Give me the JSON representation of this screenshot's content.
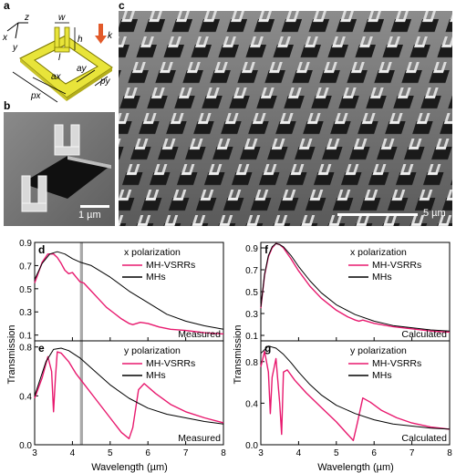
{
  "figure": {
    "panel_letters": [
      "a",
      "b",
      "c",
      "d",
      "e",
      "f",
      "g"
    ],
    "schematic_labels": {
      "z": "z",
      "x": "x",
      "y": "y",
      "w": "w",
      "l": "l",
      "h": "h",
      "k": "k",
      "ax": "ax",
      "ay": "ay",
      "px": "px",
      "py": "py"
    },
    "scalebar_b": "1 µm",
    "scalebar_c": "5 µm",
    "y_axis_label": "Transmission",
    "x_axis_label": "Wavelength (µm)",
    "colors": {
      "mh_vsrr": "#e8196e",
      "mh": "#000000",
      "gold": "#e8e43a",
      "marker_band": "#a9a9a9"
    }
  },
  "chart_data": [
    {
      "panel": "d",
      "type": "line",
      "annotation_pol": "x polarization",
      "corner_note": "Measured",
      "xlim": [
        3,
        8
      ],
      "ylim": [
        0.05,
        0.9
      ],
      "xticks": [
        3,
        4,
        5,
        6,
        7,
        8
      ],
      "yticks": [
        0.1,
        0.3,
        0.5,
        0.7,
        0.9
      ],
      "ytick_labels": [
        "0.1",
        "0.3",
        "0.5",
        "0.7",
        "0.9"
      ],
      "shaded_band": [
        4.2,
        4.28
      ],
      "series": [
        {
          "name": "MH-VSRRs",
          "color": "#e8196e",
          "x": [
            3.0,
            3.2,
            3.35,
            3.5,
            3.6,
            3.7,
            3.8,
            3.9,
            4.0,
            4.1,
            4.2,
            4.3,
            4.5,
            4.7,
            4.9,
            5.1,
            5.3,
            5.5,
            5.6,
            5.8,
            6.0,
            6.3,
            6.6,
            7.0,
            7.5,
            8.0
          ],
          "y": [
            0.55,
            0.73,
            0.8,
            0.8,
            0.77,
            0.72,
            0.66,
            0.63,
            0.64,
            0.6,
            0.56,
            0.55,
            0.48,
            0.41,
            0.34,
            0.29,
            0.24,
            0.2,
            0.19,
            0.21,
            0.2,
            0.17,
            0.15,
            0.14,
            0.12,
            0.11
          ]
        },
        {
          "name": "MHs",
          "color": "#000000",
          "x": [
            3.0,
            3.2,
            3.4,
            3.6,
            3.8,
            4.0,
            4.2,
            4.5,
            5.0,
            5.5,
            6.0,
            6.5,
            7.0,
            7.5,
            8.0
          ],
          "y": [
            0.58,
            0.72,
            0.8,
            0.82,
            0.8,
            0.76,
            0.73,
            0.7,
            0.6,
            0.48,
            0.38,
            0.28,
            0.22,
            0.18,
            0.15
          ]
        }
      ]
    },
    {
      "panel": "e",
      "type": "line",
      "annotation_pol": "y polarization",
      "corner_note": "Measured",
      "xlim": [
        3,
        8
      ],
      "ylim": [
        0,
        0.85
      ],
      "xticks": [
        3,
        4,
        5,
        6,
        7,
        8
      ],
      "yticks": [
        0,
        0.4,
        0.8
      ],
      "ytick_labels": [
        "0.0",
        "0.4",
        "0.8"
      ],
      "shaded_band": [
        4.2,
        4.28
      ],
      "series": [
        {
          "name": "MH-VSRRs",
          "color": "#e8196e",
          "x": [
            3.0,
            3.2,
            3.35,
            3.45,
            3.5,
            3.55,
            3.6,
            3.7,
            3.9,
            4.1,
            4.3,
            4.6,
            5.0,
            5.3,
            5.5,
            5.6,
            5.75,
            5.9,
            6.2,
            6.6,
            7.0,
            7.5,
            8.0
          ],
          "y": [
            0.38,
            0.55,
            0.72,
            0.6,
            0.27,
            0.55,
            0.76,
            0.75,
            0.68,
            0.58,
            0.5,
            0.38,
            0.22,
            0.1,
            0.05,
            0.14,
            0.45,
            0.5,
            0.42,
            0.33,
            0.27,
            0.22,
            0.18
          ]
        },
        {
          "name": "MHs",
          "color": "#000000",
          "x": [
            3.0,
            3.3,
            3.5,
            3.7,
            3.9,
            4.2,
            4.6,
            5.0,
            5.5,
            6.0,
            6.5,
            7.0,
            7.5,
            8.0
          ],
          "y": [
            0.4,
            0.68,
            0.78,
            0.79,
            0.77,
            0.71,
            0.6,
            0.49,
            0.38,
            0.3,
            0.25,
            0.22,
            0.19,
            0.17
          ]
        }
      ]
    },
    {
      "panel": "f",
      "type": "line",
      "annotation_pol": "x polarization",
      "corner_note": "Calculated",
      "xlim": [
        3,
        8
      ],
      "ylim": [
        0.05,
        0.95
      ],
      "xticks": [
        3,
        4,
        5,
        6,
        7,
        8
      ],
      "yticks": [
        0.1,
        0.3,
        0.5,
        0.7,
        0.9
      ],
      "ytick_labels": [
        "0.1",
        "0.3",
        "0.5",
        "0.7",
        "0.9"
      ],
      "series": [
        {
          "name": "MH-VSRRs",
          "color": "#e8196e",
          "x": [
            3.0,
            3.1,
            3.2,
            3.3,
            3.4,
            3.5,
            3.6,
            3.8,
            4.0,
            4.3,
            4.6,
            5.0,
            5.3,
            5.5,
            5.6,
            5.7,
            6.0,
            6.5,
            7.0,
            7.5,
            8.0
          ],
          "y": [
            0.35,
            0.65,
            0.82,
            0.9,
            0.94,
            0.93,
            0.9,
            0.8,
            0.69,
            0.55,
            0.44,
            0.33,
            0.27,
            0.24,
            0.23,
            0.24,
            0.21,
            0.18,
            0.16,
            0.14,
            0.13
          ]
        },
        {
          "name": "MHs",
          "color": "#000000",
          "x": [
            3.0,
            3.1,
            3.2,
            3.3,
            3.4,
            3.5,
            3.6,
            3.8,
            4.0,
            4.3,
            4.6,
            5.0,
            5.5,
            6.0,
            6.5,
            7.0,
            7.5,
            8.0
          ],
          "y": [
            0.36,
            0.66,
            0.83,
            0.91,
            0.94,
            0.93,
            0.91,
            0.83,
            0.73,
            0.6,
            0.49,
            0.38,
            0.29,
            0.23,
            0.19,
            0.17,
            0.15,
            0.14
          ]
        }
      ]
    },
    {
      "panel": "g",
      "type": "line",
      "annotation_pol": "y polarization",
      "corner_note": "Calculated",
      "xlim": [
        3,
        8
      ],
      "ylim": [
        0,
        1.0
      ],
      "xticks": [
        3,
        4,
        5,
        6,
        7,
        8
      ],
      "yticks": [
        0,
        0.4,
        0.8
      ],
      "ytick_labels": [
        "0.0",
        "0.4",
        "0.8"
      ],
      "series": [
        {
          "name": "MH-VSRRs",
          "color": "#e8196e",
          "x": [
            3.0,
            3.1,
            3.2,
            3.25,
            3.3,
            3.4,
            3.5,
            3.55,
            3.6,
            3.7,
            3.9,
            4.2,
            4.6,
            5.0,
            5.3,
            5.45,
            5.55,
            5.7,
            5.9,
            6.2,
            6.6,
            7.0,
            7.5,
            8.0
          ],
          "y": [
            0.75,
            0.9,
            0.7,
            0.3,
            0.65,
            0.83,
            0.4,
            0.1,
            0.7,
            0.72,
            0.62,
            0.5,
            0.36,
            0.22,
            0.1,
            0.04,
            0.2,
            0.45,
            0.41,
            0.33,
            0.26,
            0.21,
            0.17,
            0.15
          ]
        },
        {
          "name": "MHs",
          "color": "#000000",
          "x": [
            3.0,
            3.2,
            3.4,
            3.6,
            3.8,
            4.0,
            4.3,
            4.6,
            5.0,
            5.5,
            6.0,
            6.5,
            7.0,
            7.5,
            8.0
          ],
          "y": [
            0.88,
            0.95,
            0.93,
            0.87,
            0.79,
            0.7,
            0.58,
            0.48,
            0.38,
            0.3,
            0.24,
            0.2,
            0.18,
            0.16,
            0.15
          ]
        }
      ]
    }
  ]
}
